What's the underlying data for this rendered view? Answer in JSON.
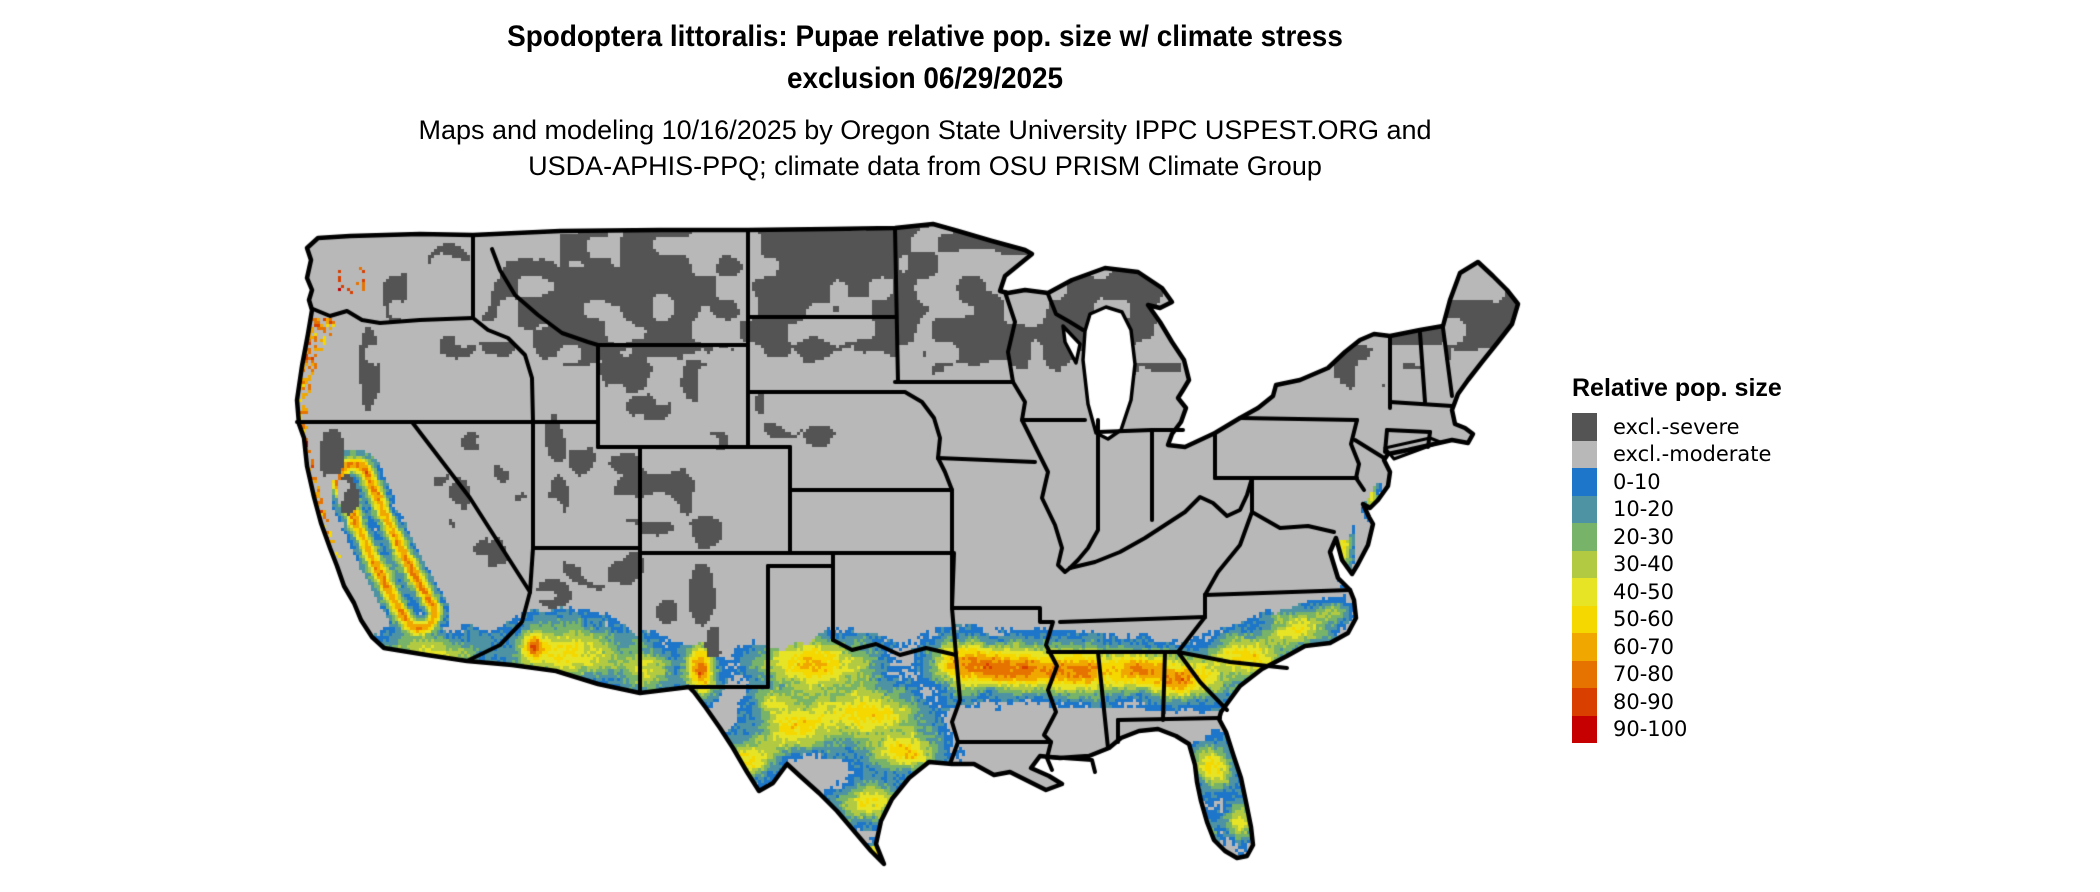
{
  "title": {
    "line1": "Spodoptera littoralis: Pupae relative pop. size w/ climate stress",
    "line2": "exclusion 06/29/2025"
  },
  "subtitle": {
    "line1": "Maps and modeling 10/16/2025 by Oregon State University IPPC USPEST.ORG and",
    "line2": "USDA-APHIS-PPQ; climate data from OSU PRISM Climate Group"
  },
  "legend": {
    "title": "Relative pop. size",
    "items": [
      {
        "label": "excl.-severe",
        "color": "#545454"
      },
      {
        "label": "excl.-moderate",
        "color": "#b8b8b8"
      },
      {
        "label": "0-10",
        "color": "#1d76c9"
      },
      {
        "label": "10-20",
        "color": "#4d93a3"
      },
      {
        "label": "20-30",
        "color": "#77b368"
      },
      {
        "label": "30-40",
        "color": "#b2ca42"
      },
      {
        "label": "40-50",
        "color": "#e7e426"
      },
      {
        "label": "50-60",
        "color": "#f5d800"
      },
      {
        "label": "60-70",
        "color": "#f0a800"
      },
      {
        "label": "70-80",
        "color": "#e67300"
      },
      {
        "label": "80-90",
        "color": "#d94000"
      },
      {
        "label": "90-100",
        "color": "#c60000"
      }
    ]
  },
  "map": {
    "background": "#ffffff",
    "border_color": "#000000",
    "water_color": "#ffffff",
    "excl_severe_color": "#545454",
    "excl_moderate_color": "#b8b8b8",
    "ramp": [
      "#1d76c9",
      "#4d93a3",
      "#77b368",
      "#b2ca42",
      "#e7e426",
      "#f5d800",
      "#f0a800",
      "#e67300",
      "#d94000",
      "#c60000"
    ]
  }
}
